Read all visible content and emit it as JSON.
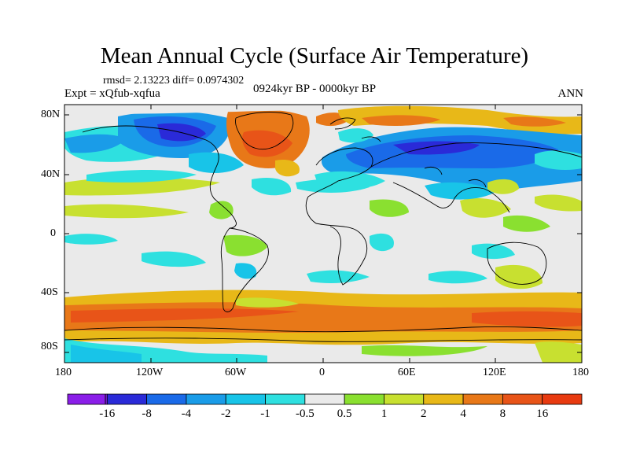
{
  "title": "Mean Annual Cycle (Surface Air Temperature)",
  "stats_text": "rmsd= 2.13223 diff= 0.0974302",
  "experiment_label": "Expt = xQfub-xqfua",
  "period_label": "0924kyr BP - 0000kyr BP",
  "season_label": "ANN",
  "axes": {
    "lat_ticks": [
      "80N",
      "40N",
      "0",
      "40S",
      "80S"
    ],
    "lon_ticks": [
      "180",
      "120W",
      "60W",
      "0",
      "60E",
      "120E",
      "180"
    ]
  },
  "colorbar": {
    "labels": [
      "-16",
      "-8",
      "-4",
      "-2",
      "-1",
      "-0.5",
      "0.5",
      "1",
      "2",
      "4",
      "8",
      "16"
    ],
    "colors": [
      "#8a1ee8",
      "#2a2ad8",
      "#1a6ae8",
      "#1a9ce8",
      "#18c4e8",
      "#2ee0e0",
      "#eaeaea",
      "#8ae030",
      "#c8e030",
      "#e8b818",
      "#e87818",
      "#e85418",
      "#e83a10"
    ]
  },
  "map_colors": {
    "neutral": "#eaeaea",
    "coast": "#000000"
  }
}
